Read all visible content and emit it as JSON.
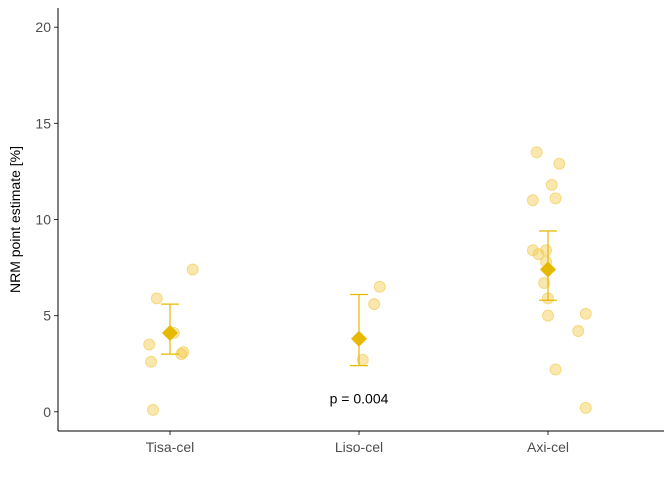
{
  "chart_data": {
    "type": "scatter",
    "title": "",
    "xlabel": "",
    "ylabel": "NRM point estimate [%]",
    "ylim": [
      -1,
      21
    ],
    "yticks": [
      0,
      5,
      10,
      15,
      20
    ],
    "categories": [
      "Tisa-cel",
      "Liso-cel",
      "Axi-cel"
    ],
    "grid": false,
    "colors": {
      "point": "#f2c94c",
      "summary": "#e6b800"
    },
    "points": [
      {
        "category": "Tisa-cel",
        "offset": -0.11,
        "y": 3.5
      },
      {
        "category": "Tisa-cel",
        "offset": -0.1,
        "y": 2.6
      },
      {
        "category": "Tisa-cel",
        "offset": -0.09,
        "y": 0.1
      },
      {
        "category": "Tisa-cel",
        "offset": -0.07,
        "y": 5.9
      },
      {
        "category": "Tisa-cel",
        "offset": 0.02,
        "y": 4.1
      },
      {
        "category": "Tisa-cel",
        "offset": 0.06,
        "y": 3.0
      },
      {
        "category": "Tisa-cel",
        "offset": 0.07,
        "y": 3.1
      },
      {
        "category": "Tisa-cel",
        "offset": 0.12,
        "y": 7.4
      },
      {
        "category": "Liso-cel",
        "offset": 0.02,
        "y": 2.7
      },
      {
        "category": "Liso-cel",
        "offset": 0.08,
        "y": 5.6
      },
      {
        "category": "Liso-cel",
        "offset": 0.11,
        "y": 6.5
      },
      {
        "category": "Axi-cel",
        "offset": -0.08,
        "y": 11.0
      },
      {
        "category": "Axi-cel",
        "offset": -0.08,
        "y": 8.4
      },
      {
        "category": "Axi-cel",
        "offset": -0.06,
        "y": 13.5
      },
      {
        "category": "Axi-cel",
        "offset": -0.05,
        "y": 8.2
      },
      {
        "category": "Axi-cel",
        "offset": -0.02,
        "y": 6.7
      },
      {
        "category": "Axi-cel",
        "offset": -0.01,
        "y": 7.8
      },
      {
        "category": "Axi-cel",
        "offset": -0.01,
        "y": 8.4
      },
      {
        "category": "Axi-cel",
        "offset": 0.0,
        "y": 5.9
      },
      {
        "category": "Axi-cel",
        "offset": 0.0,
        "y": 5.0
      },
      {
        "category": "Axi-cel",
        "offset": 0.02,
        "y": 11.8
      },
      {
        "category": "Axi-cel",
        "offset": 0.04,
        "y": 11.1
      },
      {
        "category": "Axi-cel",
        "offset": 0.04,
        "y": 2.2
      },
      {
        "category": "Axi-cel",
        "offset": 0.06,
        "y": 12.9
      },
      {
        "category": "Axi-cel",
        "offset": 0.16,
        "y": 4.2
      },
      {
        "category": "Axi-cel",
        "offset": 0.2,
        "y": 5.1
      },
      {
        "category": "Axi-cel",
        "offset": 0.2,
        "y": 0.2
      }
    ],
    "summary": [
      {
        "category": "Tisa-cel",
        "estimate": 4.1,
        "lower": 3.0,
        "upper": 5.6
      },
      {
        "category": "Liso-cel",
        "estimate": 3.8,
        "lower": 2.4,
        "upper": 6.1
      },
      {
        "category": "Axi-cel",
        "estimate": 7.4,
        "lower": 5.8,
        "upper": 9.4
      }
    ],
    "annotations": [
      {
        "text": "p = 0.004",
        "category": "Liso-cel",
        "y": 0.7
      }
    ]
  }
}
